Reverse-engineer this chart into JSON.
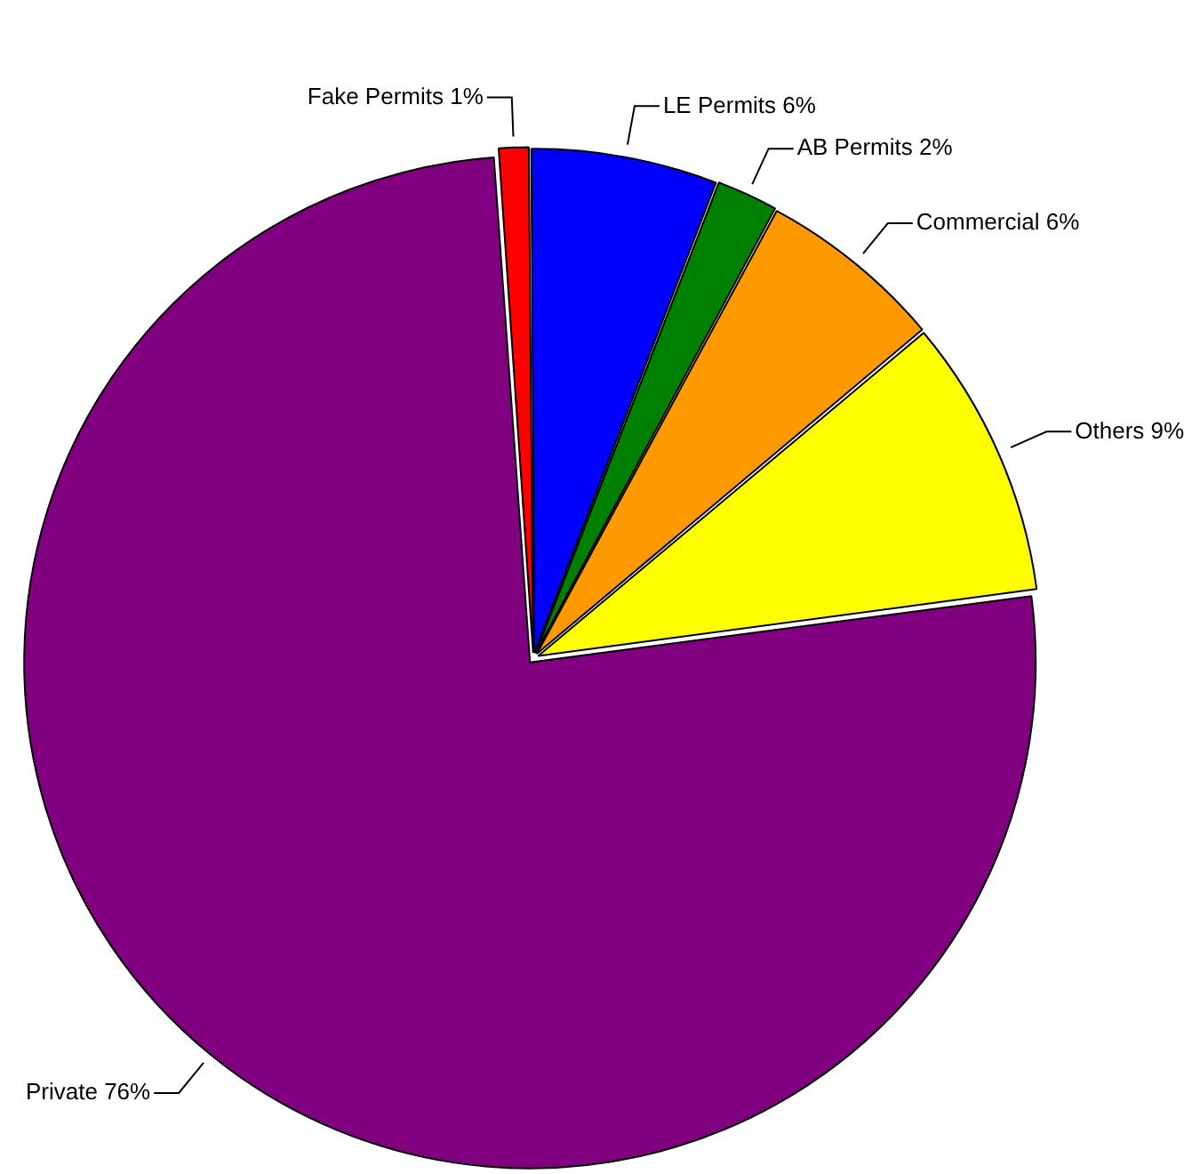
{
  "chart_data": {
    "type": "pie",
    "categories": [
      "Fake Permits",
      "LE Permits",
      "AB Permits",
      "Commercial",
      "Others",
      "Private"
    ],
    "values": [
      1,
      6,
      2,
      6,
      9,
      76
    ],
    "value_labels": [
      "1%",
      "6%",
      "2%",
      "6%",
      "9%",
      "76%"
    ],
    "colors": [
      "#ff0000",
      "#0000ff",
      "#008000",
      "#ff9900",
      "#ffff00",
      "#800080"
    ],
    "legend": false
  }
}
